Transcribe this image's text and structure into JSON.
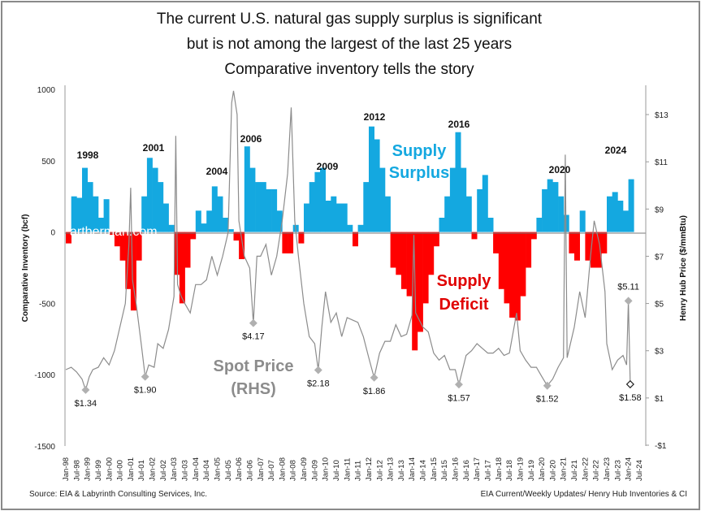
{
  "chart_data": {
    "type": "bar+line",
    "title": [
      "The current U.S. natural gas supply surplus is significant",
      "but is not among the largest of the last 25 years",
      "Comparative inventory tells the story"
    ],
    "ylabel": "Comparative Inventory (bcf)",
    "y2label": "Henry Hub Price ($/mmBtu)",
    "ylim": [
      -1500,
      1000
    ],
    "yticks": [
      "1000",
      "500",
      "0",
      "-500",
      "-1000",
      "-1500"
    ],
    "ytick_values": [
      1000,
      500,
      0,
      -500,
      -1000,
      -1500
    ],
    "y2lim": [
      -1,
      14.07
    ],
    "y2ticks": [
      "$13",
      "$11",
      "$9",
      "$7",
      "$5",
      "$3",
      "$1",
      "-$1"
    ],
    "y2tick_values": [
      13,
      11,
      9,
      7,
      5,
      3,
      1,
      -1
    ],
    "xlim": [
      "1998-01",
      "2024-07"
    ],
    "xticks": [
      "Jan-98",
      "Jul-98",
      "Jan-99",
      "Jul-99",
      "Jan-00",
      "Jul-00",
      "Jan-01",
      "Jul-01",
      "Jan-02",
      "Jul-02",
      "Jan-03",
      "Jul-03",
      "Jan-04",
      "Jul-04",
      "Jan-05",
      "Jul-05",
      "Jan-06",
      "Jul-06",
      "Jan-07",
      "Jul-07",
      "Jan-08",
      "Jul-08",
      "Jan-09",
      "Jul-09",
      "Jan-10",
      "Jul-10",
      "Jan-11",
      "Jul-11",
      "Jan-12",
      "Jul-12",
      "Jan-13",
      "Jul-13",
      "Jan-14",
      "Jul-14",
      "Jan-15",
      "Jul-15",
      "Jan-16",
      "Jul-16",
      "Jan-17",
      "Jul-17",
      "Jan-18",
      "Jul-18",
      "Jan-19",
      "Jul-19",
      "Jan-20",
      "Jul-20",
      "Jan-21",
      "Jul-21",
      "Jan-22",
      "Jul-22",
      "Jan-23",
      "Jul-23",
      "Jan-24",
      "Jul-24"
    ],
    "grid": false,
    "colors": {
      "surplus": "#14a8e0",
      "deficit": "#ff0000",
      "price": "#8c8c8c",
      "marker": "#b0b0b0"
    },
    "inventory": {
      "name": "Comparative Inventory (bcf)",
      "start": "1998-01",
      "frequency": "quarterly",
      "values": [
        -80,
        250,
        240,
        450,
        350,
        250,
        100,
        230,
        -20,
        -100,
        -200,
        -400,
        -550,
        -200,
        250,
        520,
        450,
        350,
        200,
        50,
        -300,
        -500,
        -250,
        -50,
        150,
        60,
        150,
        320,
        250,
        100,
        20,
        -60,
        -190,
        600,
        450,
        350,
        350,
        300,
        300,
        150,
        -150,
        -150,
        50,
        -80,
        200,
        350,
        420,
        450,
        220,
        250,
        200,
        200,
        50,
        -100,
        50,
        350,
        740,
        650,
        450,
        250,
        -250,
        -300,
        -400,
        -450,
        -830,
        -700,
        -500,
        -300,
        -100,
        100,
        250,
        450,
        700,
        450,
        250,
        -50,
        300,
        400,
        100,
        -150,
        -400,
        -500,
        -600,
        -620,
        -450,
        -250,
        -50,
        100,
        300,
        370,
        350,
        250,
        120,
        -150,
        -200,
        150,
        -200,
        -250,
        -250,
        -150,
        250,
        280,
        220,
        150,
        370
      ]
    },
    "price": {
      "name": "Spot Price (RHS)",
      "points": [
        [
          "1998-01",
          2.2
        ],
        [
          "1998-04",
          2.3
        ],
        [
          "1998-07",
          2.1
        ],
        [
          "1998-10",
          1.8
        ],
        [
          "1998-12",
          1.34
        ],
        [
          "1999-02",
          1.9
        ],
        [
          "1999-04",
          2.2
        ],
        [
          "1999-07",
          2.3
        ],
        [
          "1999-10",
          2.7
        ],
        [
          "2000-01",
          2.4
        ],
        [
          "2000-04",
          3.0
        ],
        [
          "2000-07",
          4.0
        ],
        [
          "2000-10",
          5.0
        ],
        [
          "2000-12",
          7.5
        ],
        [
          "2001-01",
          9.9
        ],
        [
          "2001-02",
          6.0
        ],
        [
          "2001-04",
          5.0
        ],
        [
          "2001-07",
          3.2
        ],
        [
          "2001-09",
          1.9
        ],
        [
          "2001-11",
          2.4
        ],
        [
          "2002-02",
          2.3
        ],
        [
          "2002-04",
          3.3
        ],
        [
          "2002-07",
          3.1
        ],
        [
          "2002-10",
          3.9
        ],
        [
          "2003-01",
          5.3
        ],
        [
          "2003-02",
          12.1
        ],
        [
          "2003-03",
          5.8
        ],
        [
          "2003-05",
          5.3
        ],
        [
          "2003-07",
          5.0
        ],
        [
          "2003-10",
          4.6
        ],
        [
          "2004-01",
          5.8
        ],
        [
          "2004-04",
          5.8
        ],
        [
          "2004-07",
          6.0
        ],
        [
          "2004-10",
          7.0
        ],
        [
          "2005-01",
          6.2
        ],
        [
          "2005-04",
          7.0
        ],
        [
          "2005-07",
          8.0
        ],
        [
          "2005-09",
          13.5
        ],
        [
          "2005-10",
          14.0
        ],
        [
          "2005-12",
          13.0
        ],
        [
          "2006-01",
          8.5
        ],
        [
          "2006-04",
          7.0
        ],
        [
          "2006-07",
          6.5
        ],
        [
          "2006-09",
          4.17
        ],
        [
          "2006-11",
          7.0
        ],
        [
          "2007-01",
          7.0
        ],
        [
          "2007-04",
          7.5
        ],
        [
          "2007-07",
          6.2
        ],
        [
          "2007-10",
          7.0
        ],
        [
          "2008-01",
          8.5
        ],
        [
          "2008-04",
          10.5
        ],
        [
          "2008-06",
          13.3
        ],
        [
          "2008-08",
          8.5
        ],
        [
          "2008-10",
          7.0
        ],
        [
          "2009-01",
          5.0
        ],
        [
          "2009-04",
          3.6
        ],
        [
          "2009-07",
          3.3
        ],
        [
          "2009-09",
          2.18
        ],
        [
          "2009-11",
          4.0
        ],
        [
          "2010-01",
          5.5
        ],
        [
          "2010-04",
          4.2
        ],
        [
          "2010-07",
          4.6
        ],
        [
          "2010-10",
          3.6
        ],
        [
          "2011-01",
          4.4
        ],
        [
          "2011-04",
          4.3
        ],
        [
          "2011-07",
          4.2
        ],
        [
          "2011-10",
          3.6
        ],
        [
          "2012-01",
          2.7
        ],
        [
          "2012-04",
          1.86
        ],
        [
          "2012-07",
          2.9
        ],
        [
          "2012-10",
          3.4
        ],
        [
          "2013-01",
          3.4
        ],
        [
          "2013-04",
          4.1
        ],
        [
          "2013-07",
          3.6
        ],
        [
          "2013-10",
          3.7
        ],
        [
          "2014-01",
          4.5
        ],
        [
          "2014-02",
          7.9
        ],
        [
          "2014-03",
          4.6
        ],
        [
          "2014-07",
          4.0
        ],
        [
          "2014-10",
          3.8
        ],
        [
          "2015-01",
          2.9
        ],
        [
          "2015-04",
          2.6
        ],
        [
          "2015-07",
          2.8
        ],
        [
          "2015-10",
          2.2
        ],
        [
          "2016-01",
          2.2
        ],
        [
          "2016-03",
          1.57
        ],
        [
          "2016-07",
          2.8
        ],
        [
          "2016-10",
          3.0
        ],
        [
          "2017-01",
          3.3
        ],
        [
          "2017-04",
          3.1
        ],
        [
          "2017-07",
          2.9
        ],
        [
          "2017-10",
          2.9
        ],
        [
          "2018-01",
          3.1
        ],
        [
          "2018-04",
          2.8
        ],
        [
          "2018-07",
          2.9
        ],
        [
          "2018-11",
          4.6
        ],
        [
          "2019-01",
          3.0
        ],
        [
          "2019-04",
          2.6
        ],
        [
          "2019-07",
          2.3
        ],
        [
          "2019-10",
          2.3
        ],
        [
          "2020-01",
          1.9
        ],
        [
          "2020-04",
          1.52
        ],
        [
          "2020-07",
          1.8
        ],
        [
          "2020-10",
          2.3
        ],
        [
          "2021-01",
          2.7
        ],
        [
          "2021-02",
          11.3
        ],
        [
          "2021-03",
          2.7
        ],
        [
          "2021-07",
          4.0
        ],
        [
          "2021-10",
          5.5
        ],
        [
          "2022-01",
          4.4
        ],
        [
          "2022-04",
          7.0
        ],
        [
          "2022-06",
          8.5
        ],
        [
          "2022-09",
          7.5
        ],
        [
          "2022-12",
          5.5
        ],
        [
          "2023-01",
          3.3
        ],
        [
          "2023-04",
          2.2
        ],
        [
          "2023-07",
          2.6
        ],
        [
          "2023-10",
          2.8
        ],
        [
          "2023-12",
          2.4
        ],
        [
          "2024-01",
          5.11
        ],
        [
          "2024-02",
          1.58
        ]
      ]
    },
    "price_labels": [
      {
        "label": "$1.34",
        "date": "1998-12",
        "value": 1.34,
        "pos": "below"
      },
      {
        "label": "$1.90",
        "date": "2001-09",
        "value": 1.9,
        "pos": "below"
      },
      {
        "label": "$4.17",
        "date": "2006-09",
        "value": 4.17,
        "pos": "below"
      },
      {
        "label": "$2.18",
        "date": "2009-09",
        "value": 2.18,
        "pos": "below"
      },
      {
        "label": "$1.86",
        "date": "2012-04",
        "value": 1.86,
        "pos": "below"
      },
      {
        "label": "$1.57",
        "date": "2016-03",
        "value": 1.57,
        "pos": "below"
      },
      {
        "label": "$1.52",
        "date": "2020-04",
        "value": 1.52,
        "pos": "below"
      },
      {
        "label": "$5.11",
        "date": "2024-01",
        "value": 5.11,
        "pos": "above"
      },
      {
        "label": "$1.58",
        "date": "2024-02",
        "value": 1.58,
        "pos": "below",
        "open": true
      }
    ],
    "year_labels": [
      "1998",
      "2001",
      "2004",
      "2006",
      "2009",
      "2012",
      "2016",
      "2020",
      "2024"
    ],
    "annotations": {
      "surplus": [
        "Supply",
        "Surplus"
      ],
      "deficit": [
        "Supply",
        "Deficit"
      ],
      "price": [
        "Spot Price",
        "(RHS)"
      ]
    },
    "watermark": "artberman.com",
    "source_left": "Source: EIA & Labyrinth Consulting Services, Inc.",
    "source_right": "EIA Current/Weekly Updates/ Henry Hub Inventories & CI"
  }
}
